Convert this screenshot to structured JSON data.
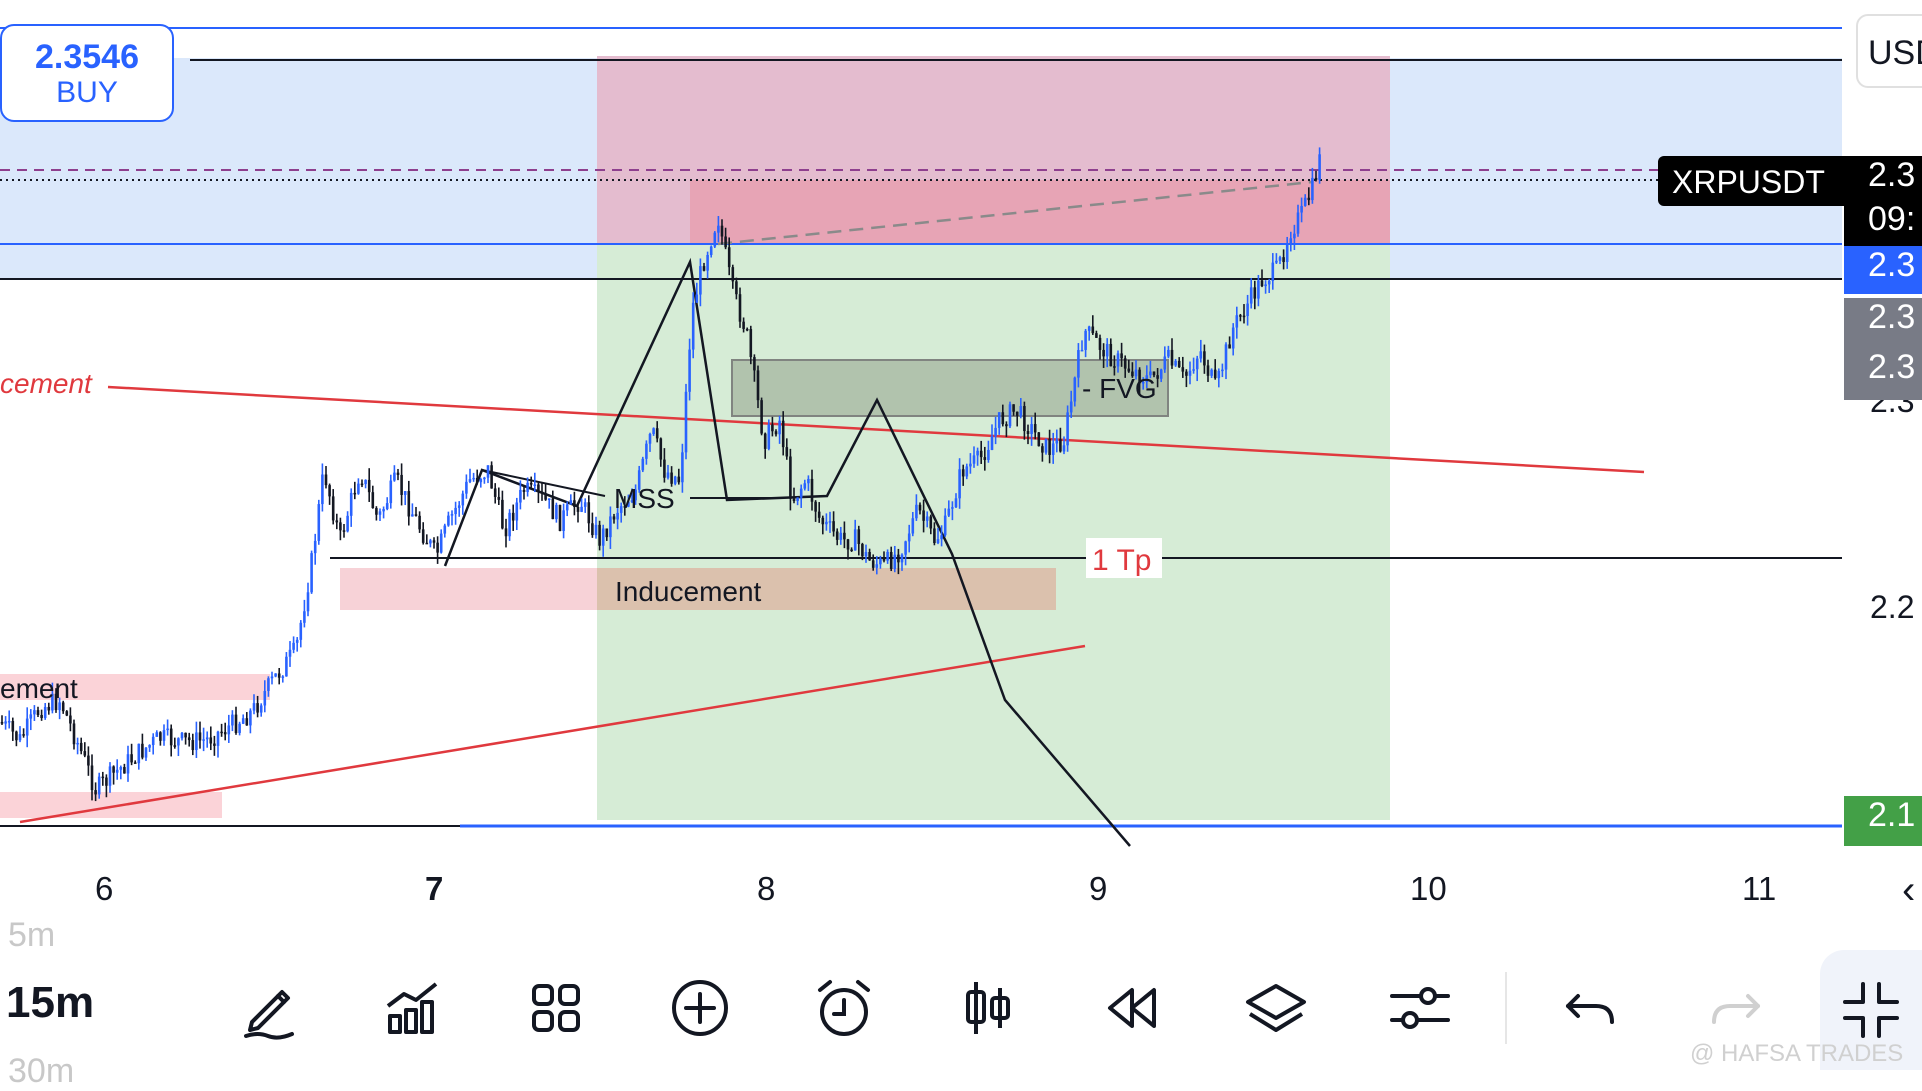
{
  "order": {
    "price": "2.3546",
    "side": "BUY"
  },
  "currency": "USD",
  "symbol": "XRPUSDT",
  "price_labels": [
    {
      "text": "2.3",
      "bg": "#000000"
    },
    {
      "text": "09:",
      "bg": "#000000"
    },
    {
      "text": "2.3",
      "bg": "#2962ff"
    },
    {
      "text": "2.3",
      "bg": "#787b86"
    },
    {
      "text": "2.3",
      "bg": "#787b86"
    },
    {
      "text": "2.1",
      "bg": "#43a047"
    }
  ],
  "price_axis_ticks": [
    "2.3",
    "2.2"
  ],
  "x_axis": [
    {
      "label": "6",
      "bold": false
    },
    {
      "label": "7",
      "bold": true
    },
    {
      "label": "8",
      "bold": false
    },
    {
      "label": "9",
      "bold": false
    },
    {
      "label": "10",
      "bold": false
    },
    {
      "label": "11",
      "bold": false
    }
  ],
  "annotations": {
    "inducement_upper": "cement",
    "inducement_lower": "ement",
    "inducement_mid": "Inducement",
    "mss": "MSS",
    "fvg": "- FVG",
    "tp": "1 Tp"
  },
  "colors": {
    "up": "#2962ff",
    "down": "#131722",
    "stop_zone": "#d88aa6",
    "target_zone": "#c8e6c9",
    "blue_zone": "#dbe8fb",
    "trendline": "#e0393e"
  },
  "timeframe": {
    "previous": "5m",
    "current": "15m",
    "next": "30m"
  },
  "toolbar": {
    "buttons": [
      "pencil-icon",
      "indicators-icon",
      "layout-grid-icon",
      "add-circle-icon",
      "alarm-icon",
      "candle-type-icon",
      "replay-icon",
      "layers-icon",
      "settings-sliders-icon",
      "undo-icon",
      "redo-icon"
    ]
  },
  "watermark": "@ HAFSA TRADES"
}
